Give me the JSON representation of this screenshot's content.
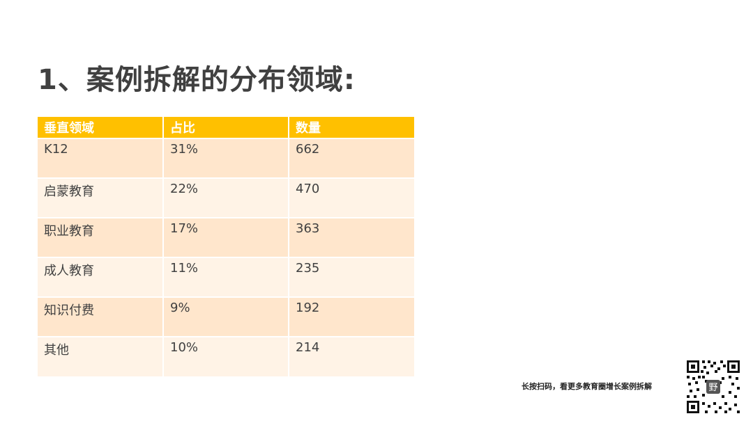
{
  "title": "1、案例拆解的分布领域:",
  "table": {
    "headers": [
      "垂直领域",
      "占比",
      "数量"
    ],
    "rows": [
      [
        "K12",
        "31%",
        "662"
      ],
      [
        "启蒙教育",
        "22%",
        "470"
      ],
      [
        "职业教育",
        "17%",
        "363"
      ],
      [
        "成人教育",
        "11%",
        "235"
      ],
      [
        "知识付费",
        "9%",
        "192"
      ],
      [
        "其他",
        "10%",
        "214"
      ]
    ]
  },
  "footer": {
    "scan_text": "长按扫码，看更多教育圈增长案例拆解",
    "qr_center_label": "野"
  },
  "colors": {
    "header_bg": "#ffc000",
    "row_odd": "#ffe6cc",
    "row_even": "#fff3e6",
    "title": "#404040"
  },
  "icons": [
    "qr-code-icon"
  ]
}
